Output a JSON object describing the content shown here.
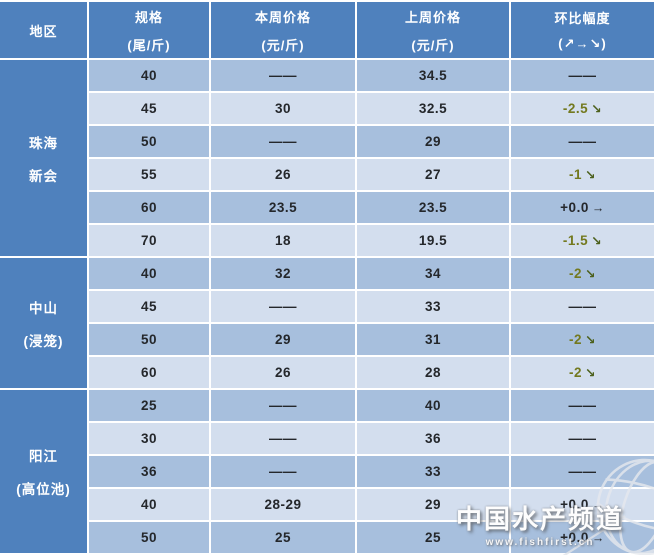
{
  "chart_data": {
    "type": "table",
    "header": {
      "region": "地区",
      "cols": [
        {
          "line1": "规格",
          "line2": "(尾/斤)"
        },
        {
          "line1": "本周价格",
          "line2": "(元/斤)"
        },
        {
          "line1": "上周价格",
          "line2": "(元/斤)"
        },
        {
          "line1": "环比幅度",
          "line2": "(↗→↘)"
        }
      ]
    },
    "groups": [
      {
        "region_lines": [
          "珠海",
          "新会"
        ],
        "rows": [
          {
            "spec": "40",
            "this_week": "——",
            "last_week": "34.5",
            "change": "——",
            "arrow": "",
            "trend": "none"
          },
          {
            "spec": "45",
            "this_week": "30",
            "last_week": "32.5",
            "change": "-2.5",
            "arrow": "↘",
            "trend": "down"
          },
          {
            "spec": "50",
            "this_week": "——",
            "last_week": "29",
            "change": "——",
            "arrow": "",
            "trend": "none"
          },
          {
            "spec": "55",
            "this_week": "26",
            "last_week": "27",
            "change": "-1",
            "arrow": "↘",
            "trend": "down"
          },
          {
            "spec": "60",
            "this_week": "23.5",
            "last_week": "23.5",
            "change": "+0.0",
            "arrow": "→",
            "trend": "flat"
          },
          {
            "spec": "70",
            "this_week": "18",
            "last_week": "19.5",
            "change": "-1.5",
            "arrow": "↘",
            "trend": "down"
          }
        ]
      },
      {
        "region_lines": [
          "中山",
          "(浸笼)"
        ],
        "rows": [
          {
            "spec": "40",
            "this_week": "32",
            "last_week": "34",
            "change": "-2",
            "arrow": "↘",
            "trend": "down"
          },
          {
            "spec": "45",
            "this_week": "——",
            "last_week": "33",
            "change": "——",
            "arrow": "",
            "trend": "none"
          },
          {
            "spec": "50",
            "this_week": "29",
            "last_week": "31",
            "change": "-2",
            "arrow": "↘",
            "trend": "down"
          },
          {
            "spec": "60",
            "this_week": "26",
            "last_week": "28",
            "change": "-2",
            "arrow": "↘",
            "trend": "down"
          }
        ]
      },
      {
        "region_lines": [
          "阳江",
          "(高位池)"
        ],
        "rows": [
          {
            "spec": "25",
            "this_week": "——",
            "last_week": "40",
            "change": "——",
            "arrow": "",
            "trend": "none"
          },
          {
            "spec": "30",
            "this_week": "——",
            "last_week": "36",
            "change": "——",
            "arrow": "",
            "trend": "none"
          },
          {
            "spec": "36",
            "this_week": "——",
            "last_week": "33",
            "change": "——",
            "arrow": "",
            "trend": "none"
          },
          {
            "spec": "40",
            "this_week": "28-29",
            "last_week": "29",
            "change": "+0.0",
            "arrow": "→",
            "trend": "flat"
          },
          {
            "spec": "50",
            "this_week": "25",
            "last_week": "25",
            "change": "+0.0",
            "arrow": "→",
            "trend": "flat"
          }
        ]
      }
    ]
  },
  "watermark": {
    "title": "中国水产频道",
    "url": "www.fishfirst.cn"
  },
  "colors": {
    "header_blue": "#4f81bd",
    "row_dark": "#a7bfdd",
    "row_light": "#d3deee",
    "grid_white": "#ffffff",
    "text_dark": "#24272b",
    "change_down": "#73791f",
    "change_down_arrow": "#4c601c"
  }
}
